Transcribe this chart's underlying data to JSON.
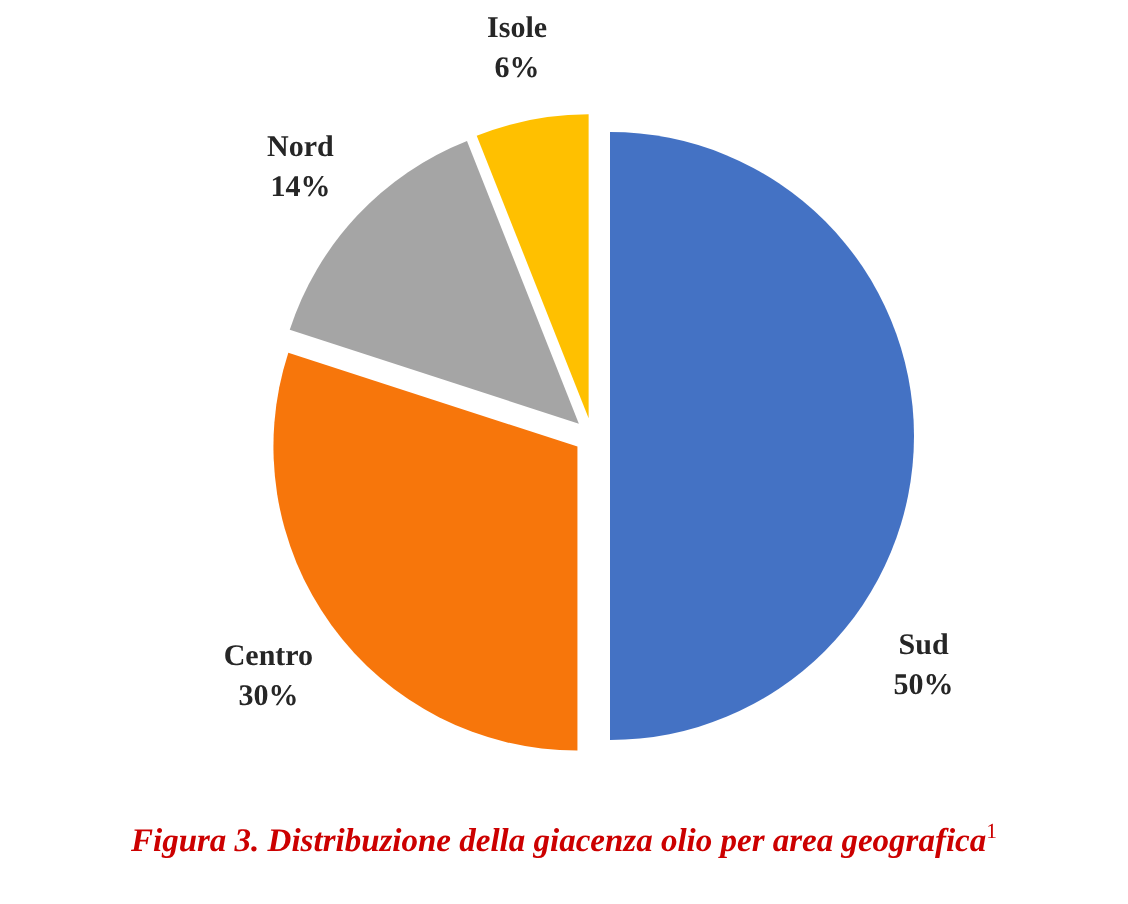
{
  "chart_data": {
    "type": "pie",
    "title": "Figura 3. Distribuzione della giacenza olio per area geografica$^{1}$",
    "categories": [
      "Sud",
      "Centro",
      "Nord",
      "Isole"
    ],
    "values": [
      50,
      30,
      14,
      6
    ],
    "colors": [
      "#4472c4",
      "#f7760b",
      "#a5a5a5",
      "#ffc000"
    ],
    "value_labels": [
      "50%",
      "30%",
      "14%",
      "6%"
    ]
  }
}
